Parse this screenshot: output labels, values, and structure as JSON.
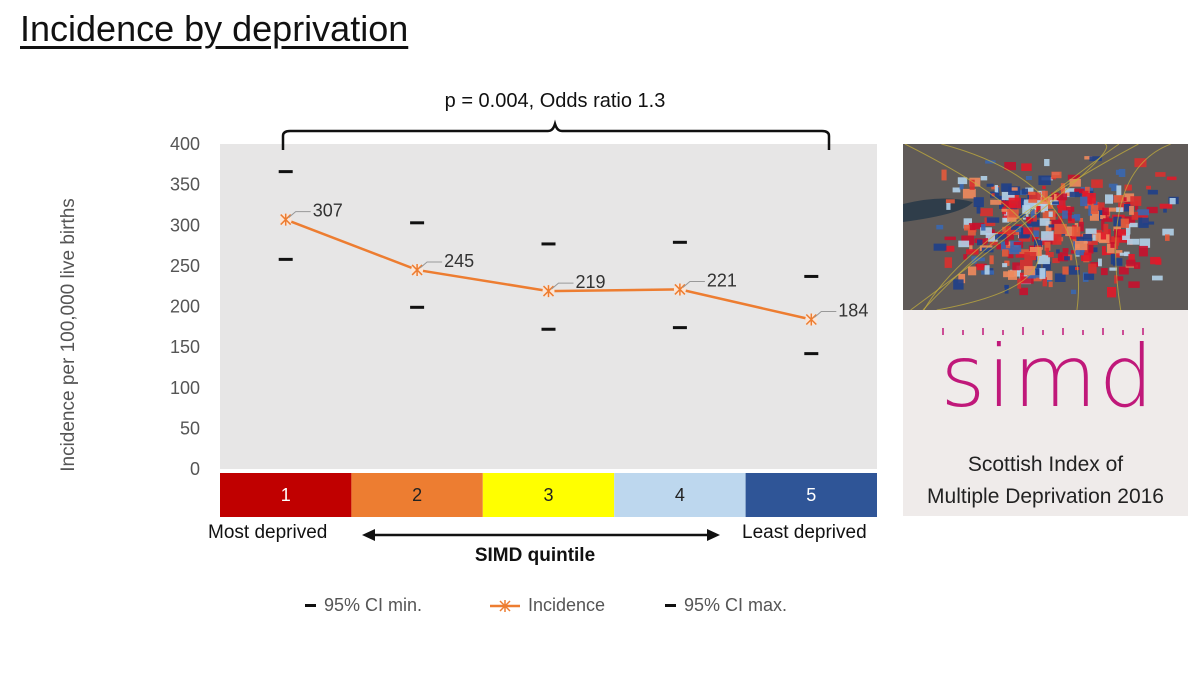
{
  "page": {
    "title": "Incidence by deprivation"
  },
  "chart_data": {
    "type": "line",
    "categories": [
      "1",
      "2",
      "3",
      "4",
      "5"
    ],
    "series": [
      {
        "name": "Incidence",
        "values": [
          307,
          245,
          219,
          221,
          184
        ],
        "color": "#ED7D31",
        "marker": "star"
      },
      {
        "name": "95% CI min.",
        "values": [
          258,
          199,
          172,
          174,
          142
        ],
        "color": "#111111",
        "marker": "dash"
      },
      {
        "name": "95% CI max.",
        "values": [
          366,
          303,
          277,
          279,
          237
        ],
        "color": "#111111",
        "marker": "dash"
      }
    ],
    "data_labels": [
      "307",
      "245",
      "219",
      "221",
      "184"
    ],
    "ylabel": "Incidence per 100,000 live births",
    "xlabel": "SIMD quintile",
    "ylim": [
      0,
      400
    ],
    "yticks": [
      0,
      50,
      100,
      150,
      200,
      250,
      300,
      350,
      400
    ],
    "ytick_labels": [
      "0",
      "50",
      "100",
      "150",
      "200",
      "250",
      "300",
      "350",
      "400"
    ],
    "quintile_colors": [
      "#C00000",
      "#ED7D31",
      "#FFFF00",
      "#BDD7EE",
      "#2F5597"
    ],
    "quintile_text_colors": [
      "#ffffff",
      "#222222",
      "#222222",
      "#222222",
      "#ffffff"
    ],
    "plot_background": "#E7E6E6",
    "grid": false,
    "legend_position": "bottom",
    "annotation": "p = 0.004, Odds ratio 1.3",
    "x_end_labels": {
      "left": "Most deprived",
      "right": "Least deprived"
    }
  },
  "legend": [
    {
      "label": "95% CI min.",
      "style": "dash",
      "color": "#111111"
    },
    {
      "label": "Incidence",
      "style": "line-star",
      "color": "#ED7D31"
    },
    {
      "label": "95% CI max.",
      "style": "dash",
      "color": "#111111"
    }
  ],
  "simd_logo": {
    "logo_text": "simd",
    "caption_line1": "Scottish Index of",
    "caption_line2": "Multiple Deprivation 2016",
    "logo_color": "#C0187A"
  }
}
